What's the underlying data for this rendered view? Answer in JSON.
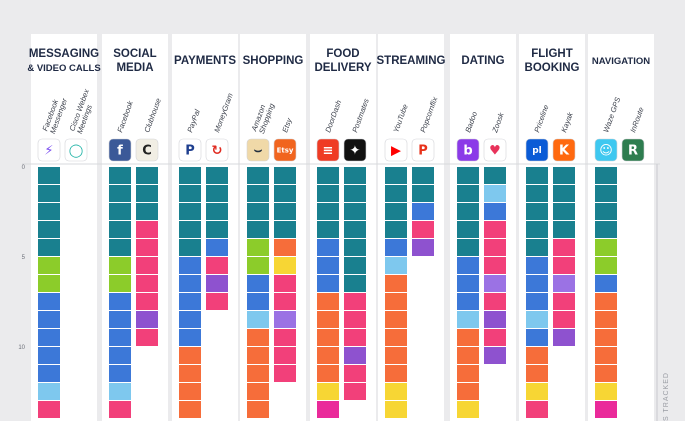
{
  "chart_data": {
    "type": "bar",
    "subtype": "stacked-segment-columns",
    "y_ticks": [
      "0",
      "5",
      "10"
    ],
    "ylim": [
      0,
      14
    ],
    "axis_label_fragment": "S TRACKED",
    "colors": {
      "teal": "#19808f",
      "green": "#8ccc2a",
      "blue": "#3c78d8",
      "light": "#7ec8ee",
      "pink": "#f2407a",
      "orange": "#f66d3a",
      "purple": "#8e52cf",
      "yellow": "#f7d634",
      "magenta": "#ea2a9a",
      "violet": "#9b72e4"
    },
    "categories": [
      {
        "title": [
          "MESSAGING",
          "& VIDEO CALLS"
        ],
        "apps": [
          {
            "label": [
              "Facebook",
              "Messenger"
            ],
            "icon": "messenger-icon",
            "icon_bg": "#ffffff",
            "icon_fg": "#7a4cf0",
            "glyph": "⚡",
            "segments": [
              "teal",
              "teal",
              "teal",
              "teal",
              "teal",
              "green",
              "green",
              "blue",
              "blue",
              "blue",
              "blue",
              "blue",
              "light",
              "pink"
            ]
          },
          {
            "label": [
              "Cisco Webex",
              "Meetings"
            ],
            "icon": "webex-icon",
            "icon_bg": "#ffffff",
            "icon_fg": "#1fb3a6",
            "glyph": "◯",
            "segments": []
          }
        ]
      },
      {
        "title": [
          "SOCIAL",
          "MEDIA"
        ],
        "apps": [
          {
            "label": [
              "Facebook"
            ],
            "icon": "facebook-icon",
            "icon_bg": "#3b5998",
            "icon_fg": "#ffffff",
            "glyph": "f",
            "segments": [
              "teal",
              "teal",
              "teal",
              "teal",
              "teal",
              "green",
              "green",
              "blue",
              "blue",
              "blue",
              "blue",
              "blue",
              "light",
              "pink"
            ]
          },
          {
            "label": [
              "Clubhouse"
            ],
            "icon": "clubhouse-icon",
            "icon_bg": "#f1eee4",
            "icon_fg": "#222222",
            "glyph": "C",
            "segments": [
              "teal",
              "teal",
              "teal",
              "pink",
              "pink",
              "pink",
              "pink",
              "pink",
              "purple",
              "pink"
            ]
          }
        ]
      },
      {
        "title": [
          "PAYMENTS"
        ],
        "apps": [
          {
            "label": [
              "PayPal"
            ],
            "icon": "paypal-icon",
            "icon_bg": "#ffffff",
            "icon_fg": "#1f3f8f",
            "glyph": "P",
            "segments": [
              "teal",
              "teal",
              "teal",
              "teal",
              "teal",
              "blue",
              "blue",
              "blue",
              "blue",
              "blue",
              "orange",
              "orange",
              "orange",
              "orange"
            ]
          },
          {
            "label": [
              "MoneyGram"
            ],
            "icon": "moneygram-icon",
            "icon_bg": "#ffffff",
            "icon_fg": "#e02b20",
            "glyph": "↻",
            "segments": [
              "teal",
              "teal",
              "teal",
              "teal",
              "blue",
              "pink",
              "purple",
              "pink"
            ]
          }
        ]
      },
      {
        "title": [
          "SHOPPING"
        ],
        "apps": [
          {
            "label": [
              "Amazon",
              "Shopping"
            ],
            "icon": "amazon-icon",
            "icon_bg": "#f0d9a8",
            "icon_fg": "#232f3e",
            "glyph": "⌣",
            "segments": [
              "teal",
              "teal",
              "teal",
              "teal",
              "green",
              "green",
              "blue",
              "blue",
              "light",
              "orange",
              "orange",
              "orange",
              "orange",
              "orange"
            ]
          },
          {
            "label": [
              "Etsy"
            ],
            "icon": "etsy-icon",
            "icon_bg": "#f1641e",
            "icon_fg": "#ffffff",
            "glyph": "Etsy",
            "segments": [
              "teal",
              "teal",
              "teal",
              "teal",
              "orange",
              "yellow",
              "pink",
              "pink",
              "violet",
              "pink",
              "pink",
              "pink"
            ]
          }
        ]
      },
      {
        "title": [
          "FOOD",
          "DELIVERY"
        ],
        "apps": [
          {
            "label": [
              "DoorDash"
            ],
            "icon": "doordash-icon",
            "icon_bg": "#ef3b24",
            "icon_fg": "#ffffff",
            "glyph": "≡",
            "segments": [
              "teal",
              "teal",
              "teal",
              "teal",
              "blue",
              "blue",
              "blue",
              "orange",
              "orange",
              "orange",
              "orange",
              "orange",
              "yellow",
              "magenta"
            ]
          },
          {
            "label": [
              "Postmates"
            ],
            "icon": "postmates-icon",
            "icon_bg": "#111111",
            "icon_fg": "#ffffff",
            "glyph": "✦",
            "segments": [
              "teal",
              "teal",
              "teal",
              "teal",
              "teal",
              "teal",
              "teal",
              "pink",
              "pink",
              "pink",
              "purple",
              "pink",
              "pink"
            ]
          }
        ]
      },
      {
        "title": [
          "STREAMING"
        ],
        "apps": [
          {
            "label": [
              "YouTube"
            ],
            "icon": "youtube-icon",
            "icon_bg": "#ffffff",
            "icon_fg": "#ff0000",
            "glyph": "▶",
            "segments": [
              "teal",
              "teal",
              "teal",
              "teal",
              "blue",
              "light",
              "orange",
              "orange",
              "orange",
              "orange",
              "orange",
              "orange",
              "yellow",
              "yellow"
            ]
          },
          {
            "label": [
              "Popcornflix"
            ],
            "icon": "popcornflix-icon",
            "icon_bg": "#ffffff",
            "icon_fg": "#e8321a",
            "glyph": "P",
            "segments": [
              "teal",
              "teal",
              "blue",
              "pink",
              "purple"
            ]
          }
        ]
      },
      {
        "title": [
          "DATING"
        ],
        "apps": [
          {
            "label": [
              "Badoo"
            ],
            "icon": "badoo-icon",
            "icon_bg": "#8b3ae8",
            "icon_fg": "#ffffff",
            "glyph": "b",
            "segments": [
              "teal",
              "teal",
              "teal",
              "teal",
              "teal",
              "blue",
              "blue",
              "blue",
              "light",
              "orange",
              "orange",
              "orange",
              "orange",
              "yellow"
            ]
          },
          {
            "label": [
              "Zoosk"
            ],
            "icon": "zoosk-icon",
            "icon_bg": "#ffffff",
            "icon_fg": "#e8325a",
            "glyph": "♥",
            "segments": [
              "teal",
              "light",
              "blue",
              "pink",
              "pink",
              "pink",
              "violet",
              "pink",
              "purple",
              "pink",
              "purple"
            ]
          }
        ]
      },
      {
        "title": [
          "FLIGHT",
          "BOOKING"
        ],
        "apps": [
          {
            "label": [
              "Priceline"
            ],
            "icon": "priceline-icon",
            "icon_bg": "#0a5bd6",
            "icon_fg": "#ffffff",
            "glyph": "pl",
            "segments": [
              "teal",
              "teal",
              "teal",
              "teal",
              "teal",
              "blue",
              "blue",
              "blue",
              "light",
              "blue",
              "orange",
              "orange",
              "yellow",
              "pink"
            ]
          },
          {
            "label": [
              "Kayak"
            ],
            "icon": "kayak-icon",
            "icon_bg": "#ff690f",
            "icon_fg": "#ffffff",
            "glyph": "K",
            "segments": [
              "teal",
              "teal",
              "teal",
              "teal",
              "pink",
              "pink",
              "violet",
              "pink",
              "pink",
              "purple"
            ]
          }
        ]
      },
      {
        "title": [
          "NAVIGATION"
        ],
        "apps": [
          {
            "label": [
              "Waze GPS"
            ],
            "icon": "waze-icon",
            "icon_bg": "#3ec8f0",
            "icon_fg": "#ffffff",
            "glyph": "☺",
            "segments": [
              "teal",
              "teal",
              "teal",
              "teal",
              "green",
              "green",
              "blue",
              "orange",
              "orange",
              "orange",
              "orange",
              "orange",
              "yellow",
              "magenta"
            ]
          },
          {
            "label": [
              "InRoute"
            ],
            "icon": "inroute-icon",
            "icon_bg": "#2e7d4f",
            "icon_fg": "#ffffff",
            "glyph": "R",
            "segments": []
          }
        ]
      }
    ]
  }
}
